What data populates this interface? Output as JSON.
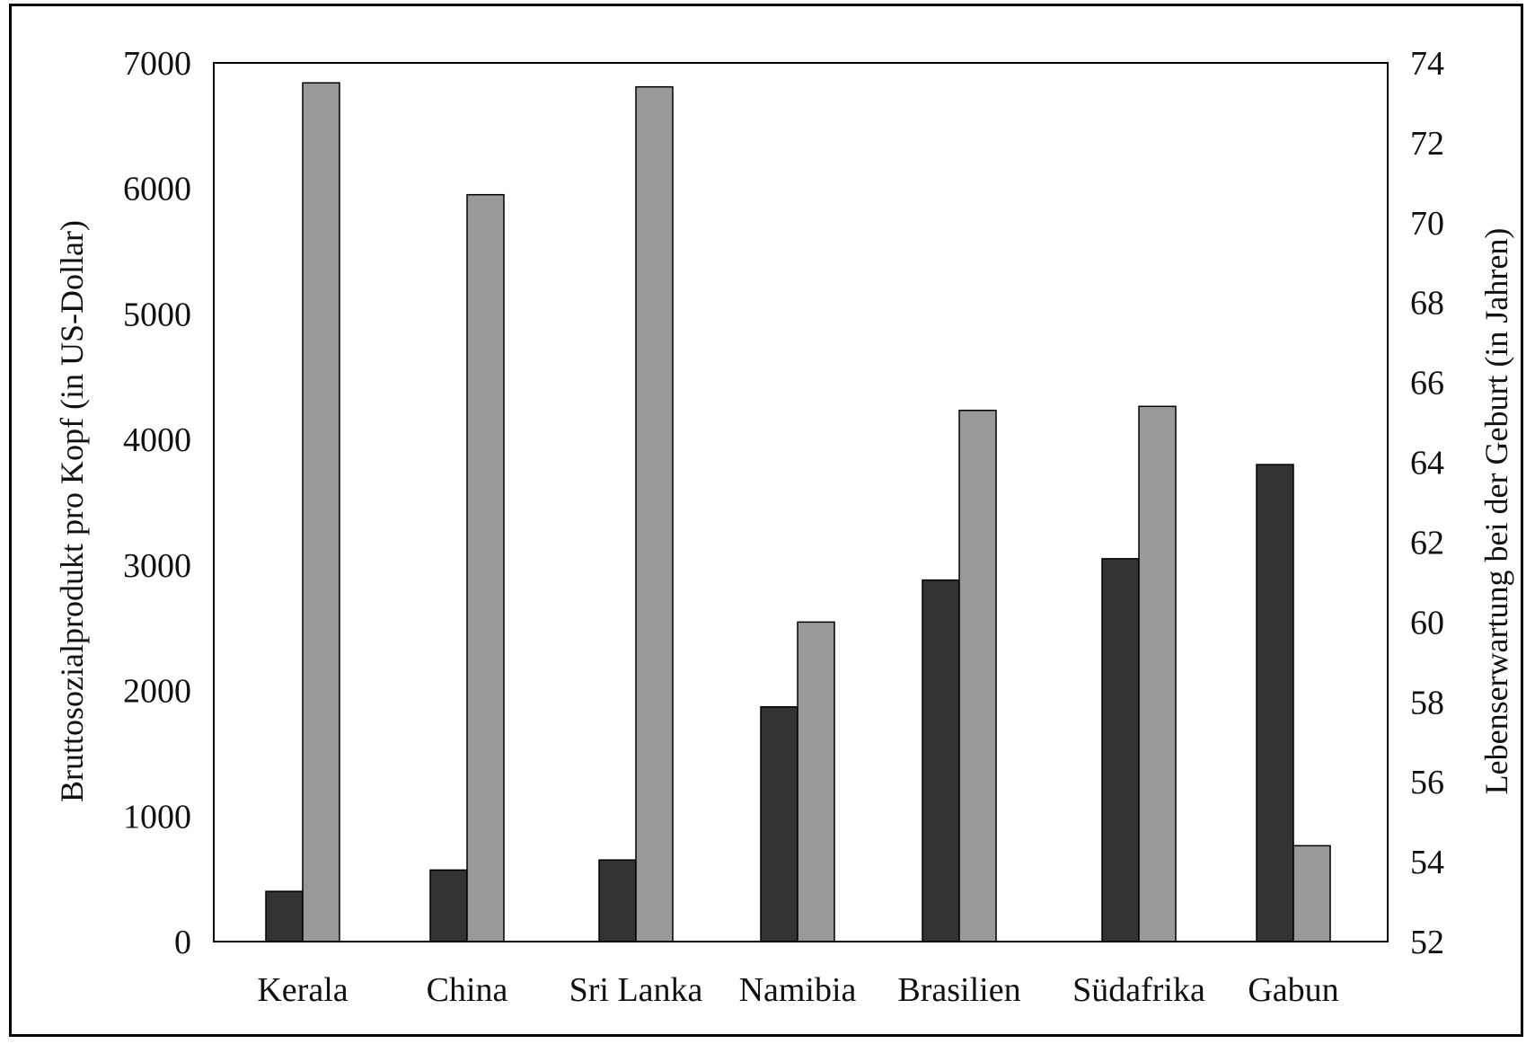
{
  "chart_data": {
    "type": "bar",
    "categories": [
      "Kerala",
      "China",
      "Sri Lanka",
      "Namibia",
      "Brasilien",
      "Südafrika",
      "Gabun"
    ],
    "series": [
      {
        "axis": "left",
        "color": "#333333",
        "values": [
          400,
          570,
          650,
          1870,
          2880,
          3050,
          3800
        ]
      },
      {
        "axis": "right",
        "color": "#999999",
        "values": [
          73.5,
          70.7,
          73.4,
          60.0,
          65.3,
          65.4,
          54.4
        ]
      }
    ],
    "ylabel_left": "Bruttosozialprodukt pro Kopf (in US-Dollar)",
    "ylabel_right": "Lebenserwartung bei der Geburt (in Jahren)",
    "ylim_left": [
      0,
      7000
    ],
    "ylim_right": [
      52,
      74
    ],
    "yticks_left": [
      "0",
      "1000",
      "2000",
      "3000",
      "4000",
      "5000",
      "6000",
      "7000"
    ],
    "yticks_right": [
      "52",
      "54",
      "56",
      "58",
      "60",
      "62",
      "64",
      "66",
      "68",
      "70",
      "72",
      "74"
    ],
    "grid": false
  }
}
